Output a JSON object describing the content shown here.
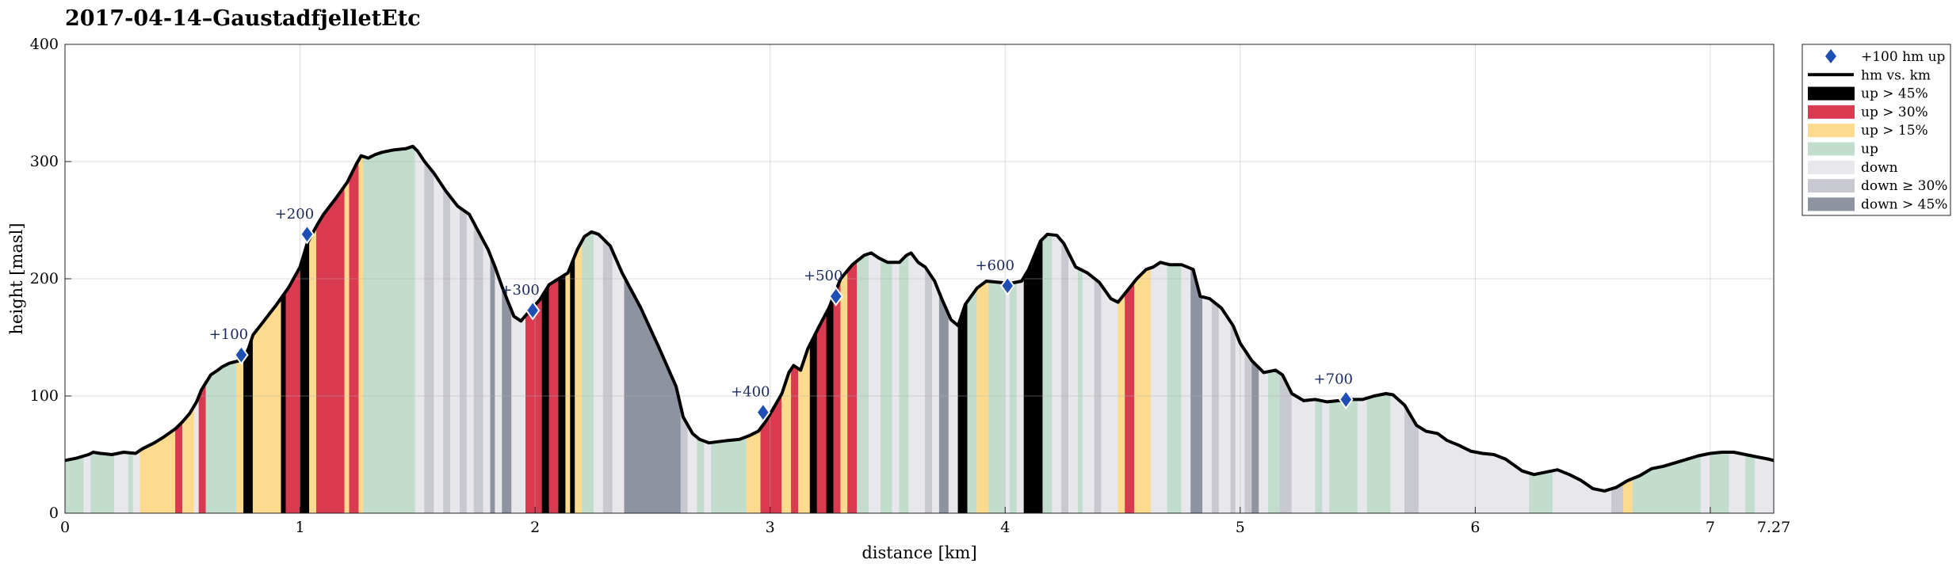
{
  "chart_data": {
    "type": "area",
    "title": "2017-04-14–GaustadfjelletEtc",
    "xlabel": "distance [km]",
    "ylabel": "height [masl]",
    "xlim": [
      0,
      7.27
    ],
    "ylim": [
      0,
      400
    ],
    "x_ticks": [
      0,
      1,
      2,
      3,
      4,
      5,
      6,
      7,
      7.27
    ],
    "x_tick_labels": [
      "0",
      "1",
      "2",
      "3",
      "4",
      "5",
      "6",
      "7",
      "7.27"
    ],
    "y_ticks": [
      0,
      100,
      200,
      300,
      400
    ],
    "y_tick_labels": [
      "0",
      "100",
      "200",
      "300",
      "400"
    ],
    "grid": true,
    "legend_position": "outside-top-right",
    "legend": [
      {
        "label": "+100 hm up",
        "kind": "marker",
        "color": "#1f4fb4"
      },
      {
        "label": "hm vs. km",
        "kind": "line",
        "color": "#000000"
      },
      {
        "label": "up > 45%",
        "kind": "patch",
        "color": "#000000"
      },
      {
        "label": "up > 30%",
        "kind": "patch",
        "color": "#d93a50"
      },
      {
        "label": "up > 15%",
        "kind": "patch",
        "color": "#fddb8e"
      },
      {
        "label": "up",
        "kind": "patch",
        "color": "#c2ddcd"
      },
      {
        "label": "down",
        "kind": "patch",
        "color": "#e8e8ec"
      },
      {
        "label": "down ≥ 30%",
        "kind": "patch",
        "color": "#c8c8d0"
      },
      {
        "label": "down > 45%",
        "kind": "patch",
        "color": "#8d94a0"
      }
    ],
    "profile": [
      [
        0,
        45
      ],
      [
        0.05,
        47
      ],
      [
        0.1,
        50
      ],
      [
        0.12,
        52
      ],
      [
        0.15,
        51
      ],
      [
        0.2,
        50
      ],
      [
        0.25,
        52
      ],
      [
        0.3,
        51
      ],
      [
        0.33,
        55
      ],
      [
        0.38,
        60
      ],
      [
        0.42,
        65
      ],
      [
        0.47,
        72
      ],
      [
        0.5,
        78
      ],
      [
        0.53,
        85
      ],
      [
        0.56,
        95
      ],
      [
        0.58,
        105
      ],
      [
        0.62,
        118
      ],
      [
        0.65,
        122
      ],
      [
        0.67,
        125
      ],
      [
        0.7,
        128
      ],
      [
        0.72,
        129
      ],
      [
        0.74,
        130
      ],
      [
        0.76,
        132
      ],
      [
        0.78,
        140
      ],
      [
        0.8,
        152
      ],
      [
        0.85,
        165
      ],
      [
        0.9,
        178
      ],
      [
        0.95,
        192
      ],
      [
        1,
        210
      ],
      [
        1.03,
        230
      ],
      [
        1.07,
        245
      ],
      [
        1.1,
        255
      ],
      [
        1.15,
        268
      ],
      [
        1.2,
        282
      ],
      [
        1.24,
        298
      ],
      [
        1.26,
        305
      ],
      [
        1.29,
        303
      ],
      [
        1.32,
        306
      ],
      [
        1.35,
        308
      ],
      [
        1.4,
        310
      ],
      [
        1.45,
        311
      ],
      [
        1.48,
        313
      ],
      [
        1.5,
        309
      ],
      [
        1.53,
        300
      ],
      [
        1.57,
        290
      ],
      [
        1.62,
        275
      ],
      [
        1.67,
        262
      ],
      [
        1.72,
        255
      ],
      [
        1.76,
        240
      ],
      [
        1.8,
        225
      ],
      [
        1.83,
        210
      ],
      [
        1.86,
        193
      ],
      [
        1.88,
        183
      ],
      [
        1.91,
        168
      ],
      [
        1.94,
        164
      ],
      [
        1.97,
        171
      ],
      [
        2.02,
        182
      ],
      [
        2.06,
        195
      ],
      [
        2.1,
        200
      ],
      [
        2.14,
        205
      ],
      [
        2.18,
        225
      ],
      [
        2.21,
        236
      ],
      [
        2.24,
        240
      ],
      [
        2.27,
        238
      ],
      [
        2.32,
        228
      ],
      [
        2.37,
        205
      ],
      [
        2.45,
        175
      ],
      [
        2.53,
        140
      ],
      [
        2.6,
        108
      ],
      [
        2.63,
        82
      ],
      [
        2.67,
        68
      ],
      [
        2.7,
        63
      ],
      [
        2.74,
        60
      ],
      [
        2.78,
        61
      ],
      [
        2.82,
        62
      ],
      [
        2.87,
        63
      ],
      [
        2.91,
        66
      ],
      [
        2.95,
        70
      ],
      [
        2.98,
        78
      ],
      [
        3.01,
        88
      ],
      [
        3.05,
        102
      ],
      [
        3.08,
        120
      ],
      [
        3.1,
        126
      ],
      [
        3.13,
        122
      ],
      [
        3.16,
        140
      ],
      [
        3.21,
        160
      ],
      [
        3.25,
        175
      ],
      [
        3.3,
        200
      ],
      [
        3.35,
        212
      ],
      [
        3.4,
        220
      ],
      [
        3.43,
        222
      ],
      [
        3.46,
        218
      ],
      [
        3.5,
        214
      ],
      [
        3.55,
        214
      ],
      [
        3.58,
        220
      ],
      [
        3.6,
        222
      ],
      [
        3.63,
        214
      ],
      [
        3.66,
        210
      ],
      [
        3.7,
        198
      ],
      [
        3.73,
        183
      ],
      [
        3.77,
        165
      ],
      [
        3.8,
        160
      ],
      [
        3.83,
        178
      ],
      [
        3.88,
        192
      ],
      [
        3.92,
        198
      ],
      [
        3.97,
        197
      ],
      [
        4.02,
        196
      ],
      [
        4.07,
        198
      ],
      [
        4.1,
        208
      ],
      [
        4.15,
        232
      ],
      [
        4.18,
        238
      ],
      [
        4.22,
        237
      ],
      [
        4.25,
        230
      ],
      [
        4.3,
        210
      ],
      [
        4.35,
        205
      ],
      [
        4.4,
        197
      ],
      [
        4.45,
        183
      ],
      [
        4.48,
        180
      ],
      [
        4.52,
        190
      ],
      [
        4.56,
        200
      ],
      [
        4.6,
        208
      ],
      [
        4.63,
        210
      ],
      [
        4.66,
        214
      ],
      [
        4.7,
        212
      ],
      [
        4.75,
        212
      ],
      [
        4.8,
        208
      ],
      [
        4.83,
        185
      ],
      [
        4.87,
        183
      ],
      [
        4.92,
        175
      ],
      [
        4.97,
        160
      ],
      [
        5,
        145
      ],
      [
        5.05,
        130
      ],
      [
        5.1,
        120
      ],
      [
        5.15,
        122
      ],
      [
        5.18,
        118
      ],
      [
        5.22,
        102
      ],
      [
        5.27,
        96
      ],
      [
        5.32,
        97
      ],
      [
        5.37,
        95
      ],
      [
        5.42,
        96
      ],
      [
        5.47,
        97
      ],
      [
        5.52,
        97
      ],
      [
        5.57,
        100
      ],
      [
        5.62,
        102
      ],
      [
        5.65,
        101
      ],
      [
        5.7,
        92
      ],
      [
        5.75,
        75
      ],
      [
        5.79,
        70
      ],
      [
        5.84,
        68
      ],
      [
        5.88,
        62
      ],
      [
        5.93,
        58
      ],
      [
        5.98,
        53
      ],
      [
        6.03,
        51
      ],
      [
        6.08,
        50
      ],
      [
        6.13,
        46
      ],
      [
        6.2,
        36
      ],
      [
        6.25,
        33
      ],
      [
        6.3,
        35
      ],
      [
        6.35,
        37
      ],
      [
        6.4,
        33
      ],
      [
        6.45,
        28
      ],
      [
        6.5,
        21
      ],
      [
        6.55,
        19
      ],
      [
        6.6,
        22
      ],
      [
        6.65,
        28
      ],
      [
        6.7,
        32
      ],
      [
        6.75,
        38
      ],
      [
        6.8,
        40
      ],
      [
        6.85,
        43
      ],
      [
        6.9,
        46
      ],
      [
        6.95,
        49
      ],
      [
        7,
        51
      ],
      [
        7.05,
        52
      ],
      [
        7.1,
        52
      ],
      [
        7.15,
        50
      ],
      [
        7.2,
        48
      ],
      [
        7.25,
        46
      ],
      [
        7.27,
        45
      ]
    ],
    "segments": [
      [
        0,
        0.08,
        "up"
      ],
      [
        0.08,
        0.11,
        "down"
      ],
      [
        0.11,
        0.21,
        "up"
      ],
      [
        0.21,
        0.27,
        "down"
      ],
      [
        0.27,
        0.29,
        "up"
      ],
      [
        0.29,
        0.32,
        "down"
      ],
      [
        0.32,
        0.47,
        "up15"
      ],
      [
        0.47,
        0.5,
        "up30"
      ],
      [
        0.5,
        0.55,
        "up15"
      ],
      [
        0.55,
        0.57,
        "down"
      ],
      [
        0.57,
        0.6,
        "up30"
      ],
      [
        0.6,
        0.73,
        "up"
      ],
      [
        0.73,
        0.76,
        "up15"
      ],
      [
        0.76,
        0.8,
        "up45"
      ],
      [
        0.8,
        0.92,
        "up15"
      ],
      [
        0.92,
        0.94,
        "up45"
      ],
      [
        0.94,
        1,
        "up30"
      ],
      [
        1,
        1.04,
        "up45"
      ],
      [
        1.04,
        1.07,
        "up15"
      ],
      [
        1.07,
        1.11,
        "up30"
      ],
      [
        1.11,
        1.19,
        "up30"
      ],
      [
        1.19,
        1.21,
        "up15"
      ],
      [
        1.21,
        1.25,
        "up30"
      ],
      [
        1.25,
        1.27,
        "up15"
      ],
      [
        1.27,
        1.3,
        "up"
      ],
      [
        1.3,
        1.49,
        "up"
      ],
      [
        1.49,
        1.53,
        "down"
      ],
      [
        1.53,
        1.57,
        "down30"
      ],
      [
        1.57,
        1.61,
        "down"
      ],
      [
        1.61,
        1.64,
        "down30"
      ],
      [
        1.64,
        1.68,
        "down"
      ],
      [
        1.68,
        1.71,
        "down30"
      ],
      [
        1.71,
        1.74,
        "down"
      ],
      [
        1.74,
        1.78,
        "down30"
      ],
      [
        1.78,
        1.81,
        "down"
      ],
      [
        1.81,
        1.83,
        "down45"
      ],
      [
        1.83,
        1.86,
        "down"
      ],
      [
        1.86,
        1.9,
        "down45"
      ],
      [
        1.9,
        1.96,
        "down"
      ],
      [
        1.96,
        2.03,
        "up30"
      ],
      [
        2.03,
        2.06,
        "up45"
      ],
      [
        2.06,
        2.1,
        "up30"
      ],
      [
        2.1,
        2.13,
        "up45"
      ],
      [
        2.13,
        2.15,
        "up15"
      ],
      [
        2.15,
        2.17,
        "up45"
      ],
      [
        2.17,
        2.2,
        "up15"
      ],
      [
        2.2,
        2.25,
        "up"
      ],
      [
        2.25,
        2.29,
        "down"
      ],
      [
        2.29,
        2.33,
        "down30"
      ],
      [
        2.33,
        2.38,
        "down"
      ],
      [
        2.38,
        2.62,
        "down45"
      ],
      [
        2.62,
        2.65,
        "down30"
      ],
      [
        2.65,
        2.69,
        "down"
      ],
      [
        2.69,
        2.72,
        "up"
      ],
      [
        2.72,
        2.75,
        "down"
      ],
      [
        2.75,
        2.9,
        "up"
      ],
      [
        2.9,
        2.96,
        "up15"
      ],
      [
        2.96,
        3.05,
        "up30"
      ],
      [
        3.05,
        3.09,
        "up15"
      ],
      [
        3.09,
        3.12,
        "up30"
      ],
      [
        3.12,
        3.17,
        "up15"
      ],
      [
        3.17,
        3.2,
        "up45"
      ],
      [
        3.2,
        3.24,
        "up30"
      ],
      [
        3.24,
        3.27,
        "up45"
      ],
      [
        3.27,
        3.3,
        "up30"
      ],
      [
        3.3,
        3.33,
        "up15"
      ],
      [
        3.33,
        3.37,
        "up30"
      ],
      [
        3.37,
        3.42,
        "up"
      ],
      [
        3.42,
        3.47,
        "down"
      ],
      [
        3.47,
        3.52,
        "up"
      ],
      [
        3.52,
        3.55,
        "down"
      ],
      [
        3.55,
        3.59,
        "up"
      ],
      [
        3.59,
        3.66,
        "down"
      ],
      [
        3.66,
        3.69,
        "down30"
      ],
      [
        3.69,
        3.72,
        "down"
      ],
      [
        3.72,
        3.76,
        "down45"
      ],
      [
        3.76,
        3.8,
        "down"
      ],
      [
        3.8,
        3.84,
        "up45"
      ],
      [
        3.84,
        3.88,
        "up"
      ],
      [
        3.88,
        3.93,
        "up15"
      ],
      [
        3.93,
        4,
        "up"
      ],
      [
        4,
        4.02,
        "down"
      ],
      [
        4.02,
        4.05,
        "up"
      ],
      [
        4.05,
        4.08,
        "down"
      ],
      [
        4.08,
        4.16,
        "up45"
      ],
      [
        4.16,
        4.2,
        "up"
      ],
      [
        4.2,
        4.24,
        "down"
      ],
      [
        4.24,
        4.27,
        "down30"
      ],
      [
        4.27,
        4.31,
        "down"
      ],
      [
        4.31,
        4.33,
        "up"
      ],
      [
        4.33,
        4.38,
        "down"
      ],
      [
        4.38,
        4.41,
        "down30"
      ],
      [
        4.41,
        4.48,
        "down"
      ],
      [
        4.48,
        4.51,
        "up15"
      ],
      [
        4.51,
        4.55,
        "up30"
      ],
      [
        4.55,
        4.62,
        "up15"
      ],
      [
        4.62,
        4.69,
        "down"
      ],
      [
        4.69,
        4.75,
        "up"
      ],
      [
        4.75,
        4.79,
        "down"
      ],
      [
        4.79,
        4.84,
        "down45"
      ],
      [
        4.84,
        4.88,
        "down"
      ],
      [
        4.88,
        4.91,
        "down30"
      ],
      [
        4.91,
        4.96,
        "down"
      ],
      [
        4.96,
        4.98,
        "down30"
      ],
      [
        4.98,
        5.02,
        "down"
      ],
      [
        5.02,
        5.05,
        "down30"
      ],
      [
        5.05,
        5.08,
        "down45"
      ],
      [
        5.08,
        5.12,
        "down"
      ],
      [
        5.12,
        5.17,
        "up"
      ],
      [
        5.17,
        5.22,
        "down30"
      ],
      [
        5.22,
        5.32,
        "down"
      ],
      [
        5.32,
        5.35,
        "up"
      ],
      [
        5.35,
        5.38,
        "down"
      ],
      [
        5.38,
        5.5,
        "up"
      ],
      [
        5.5,
        5.54,
        "down"
      ],
      [
        5.54,
        5.64,
        "up"
      ],
      [
        5.64,
        5.7,
        "down"
      ],
      [
        5.7,
        5.76,
        "down30"
      ],
      [
        5.76,
        6.23,
        "down"
      ],
      [
        6.23,
        6.33,
        "up"
      ],
      [
        6.33,
        6.58,
        "down"
      ],
      [
        6.58,
        6.63,
        "down30"
      ],
      [
        6.63,
        6.67,
        "up15"
      ],
      [
        6.67,
        6.96,
        "up"
      ],
      [
        6.96,
        7,
        "down"
      ],
      [
        7,
        7.08,
        "up"
      ],
      [
        7.08,
        7.15,
        "down"
      ],
      [
        7.15,
        7.19,
        "up"
      ],
      [
        7.19,
        7.27,
        "down"
      ]
    ],
    "markers": [
      {
        "x": 0.75,
        "y": 135,
        "label": "+100"
      },
      {
        "x": 1.03,
        "y": 238,
        "label": "+200"
      },
      {
        "x": 1.99,
        "y": 173,
        "label": "+300"
      },
      {
        "x": 2.97,
        "y": 86,
        "label": "+400"
      },
      {
        "x": 3.28,
        "y": 185,
        "label": "+500"
      },
      {
        "x": 4.01,
        "y": 194,
        "label": "+600"
      },
      {
        "x": 5.45,
        "y": 97,
        "label": "+700"
      }
    ],
    "category_colors": {
      "up45": "#000000",
      "up30": "#d93a50",
      "up15": "#fddb8e",
      "up": "#c2ddcd",
      "down": "#e8e8ec",
      "down30": "#c8c8d0",
      "down45": "#8d94a0"
    }
  }
}
